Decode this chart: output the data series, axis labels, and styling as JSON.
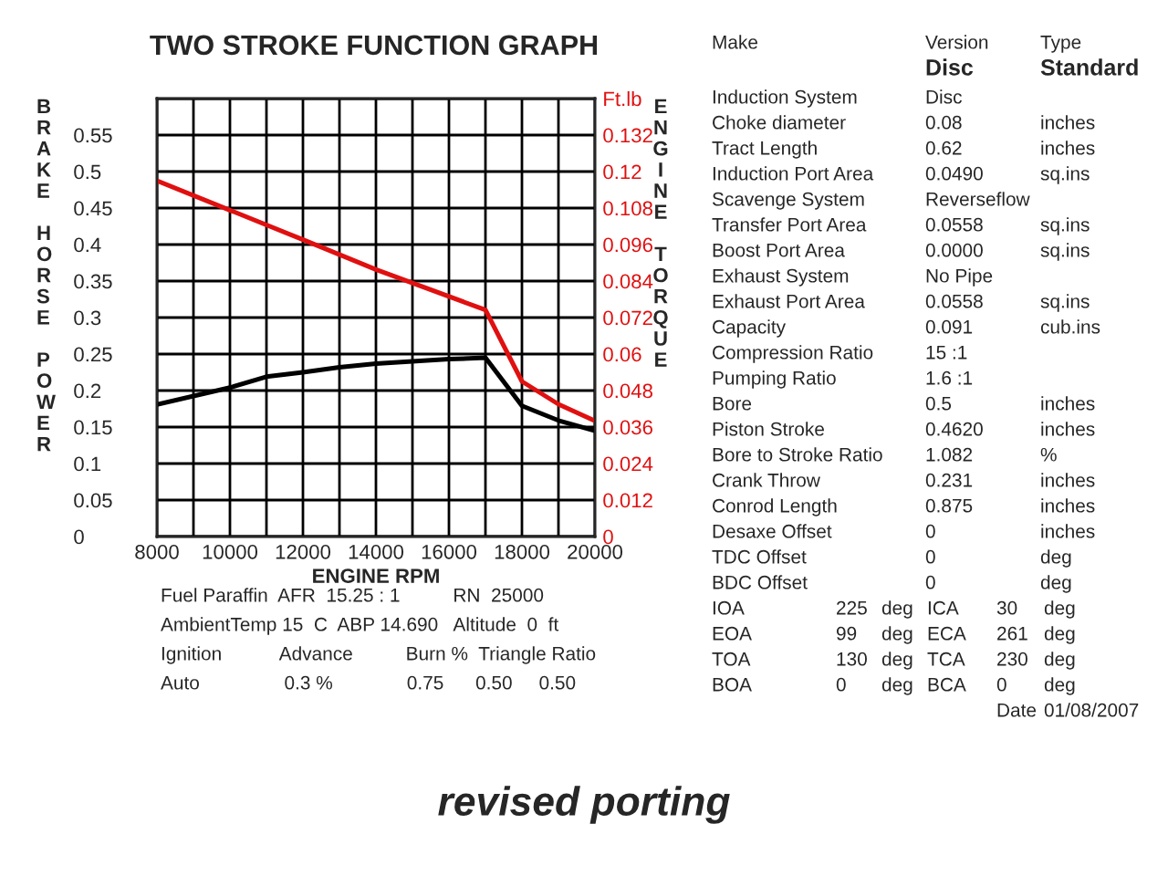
{
  "chart_data": [
    {
      "type": "line",
      "title": "TWO STROKE FUNCTION GRAPH",
      "xlabel": "ENGINE RPM",
      "ylabel": "BRAKE HORSE POWER",
      "y2label": "ENGINE TORQUE",
      "xlim": [
        8000,
        20000
      ],
      "xticks": [
        8000,
        {
          "value": 9000,
          "label": null
        },
        10000,
        {
          "value": 11000,
          "label": null
        },
        12000,
        {
          "value": 13000,
          "label": null
        },
        14000,
        {
          "value": 15000,
          "label": null
        },
        16000,
        {
          "value": 17000,
          "label": null
        },
        18000,
        {
          "value": 19000,
          "label": null
        },
        20000
      ],
      "ylim": [
        0,
        0.6
      ],
      "yticks": [
        0,
        0.05,
        0.1,
        0.15,
        0.2,
        0.25,
        0.3,
        0.35,
        0.4,
        0.45,
        0.5,
        0.55,
        {
          "value": 0.6,
          "label": null
        }
      ],
      "y2lim": [
        0,
        0.144
      ],
      "y2ticks": [
        0,
        0.012,
        0.024,
        0.036,
        0.048,
        0.06,
        0.072,
        0.084,
        0.096,
        0.108,
        0.12,
        0.132,
        {
          "value": 0.144,
          "label": "Ft.lb"
        }
      ],
      "grid": true,
      "marker": "none",
      "line_style": "solid",
      "series": [
        {
          "color": "#000000",
          "x": [
            8000,
            10000,
            11000,
            12000,
            13000,
            14000,
            15000,
            16000,
            17000,
            18000,
            19000,
            20000
          ],
          "values": [
            0.181,
            0.204,
            0.219,
            0.225,
            0.232,
            0.237,
            0.24,
            0.243,
            0.245,
            0.179,
            0.159,
            0.145
          ]
        },
        {
          "color": "#e01010",
          "axis": "y2",
          "x": [
            8000,
            12000,
            14000,
            17000,
            18000,
            19000,
            20000
          ],
          "values": [
            0.117,
            0.0976,
            0.0878,
            0.0745,
            0.051,
            0.0435,
            0.038
          ]
        }
      ],
      "annotations": [
        "Fuel Paraffin  AFR  15.25 : 1          RN  25000",
        "AmbientTemp 15  C  ABP 14.690   Altitude  0  ft",
        "Ignition           Advance          Burn %  Triangle Ratio",
        "Auto                0.3 %              0.75      0.50     0.50",
        "revised porting"
      ]
    },
    {
      "type": "other",
      "annotations": [
        "Make\tVersion\tType",
        "\tDisc\tStandard",
        "Induction System\tDisc",
        "Choke diameter\t0.08\tinches",
        "Tract Length\t0.62\tinches",
        "Induction Port Area\t0.0490\tsq.ins",
        "Scavenge System\tReverseflow",
        "Transfer Port Area\t0.0558\tsq.ins",
        "Boost Port Area\t0.0000\tsq.ins",
        "Exhaust System\tNo Pipe",
        "Exhaust Port Area\t0.0558\tsq.ins",
        "Capacity\t0.091\tcub.ins",
        "Compression Ratio\t15 :1",
        "Pumping Ratio\t1.6 :1",
        "Bore\t0.5\tinches",
        "Piston Stroke\t0.4620\tinches",
        "Bore to Stroke Ratio\t1.082\t%",
        "Crank Throw\t0.231\tinches",
        "Conrod Length\t0.875\tinches",
        "Desaxe Offset\t0\tinches",
        "TDC Offset\t0\tdeg",
        "BDC Offset\t0\tdeg",
        "IOA\t225\tdeg\tICA\t30\tdeg",
        "EOA\t99\tdeg\tECA\t261\tdeg",
        "TOA\t130\tdeg\tTCA\t230\tdeg",
        "BOA\t0\tdeg\tBCA\t0\tdeg",
        "\t\t\t\tDate\t01/08/2007"
      ]
    }
  ]
}
